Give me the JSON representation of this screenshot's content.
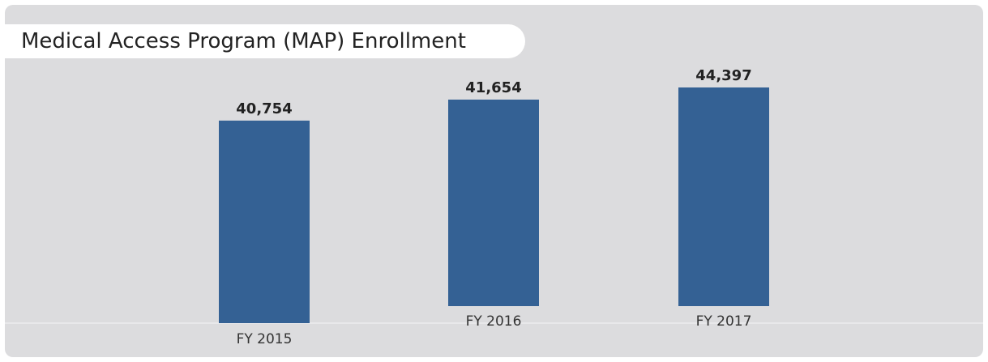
{
  "chart_data": {
    "type": "bar",
    "title": "Medical Access Program (MAP) Enrollment",
    "categories": [
      "FY 2015",
      "FY 2016",
      "FY 2017"
    ],
    "values": [
      40754,
      41654,
      44397
    ],
    "value_labels": [
      "40,754",
      "41,654",
      "44,397"
    ],
    "xlabel": "",
    "ylabel": "",
    "grid": false,
    "legend": "none",
    "bar_color": "#346194"
  }
}
